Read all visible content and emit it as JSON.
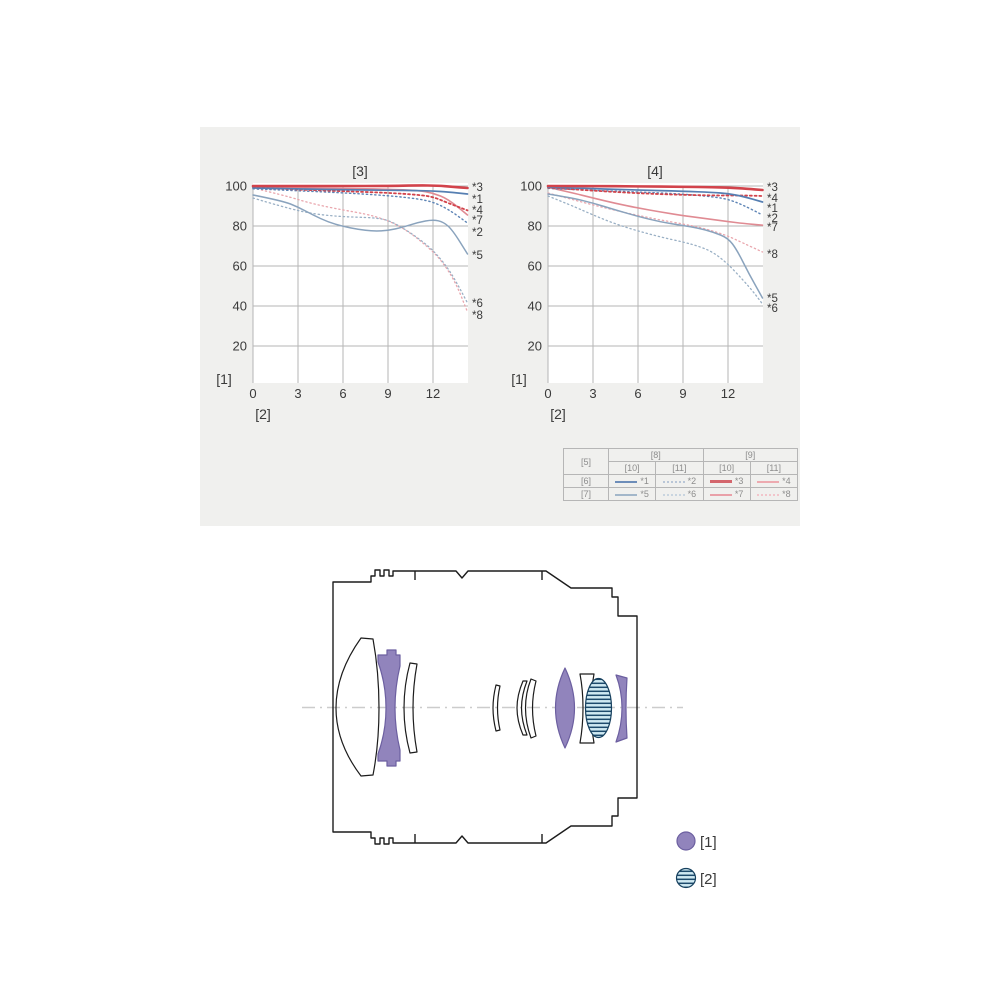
{
  "panel": {
    "background": "#f0f0ee",
    "plot_background": "#ffffff",
    "grid_color": "#b5b5b5"
  },
  "chart_data": [
    {
      "type": "line",
      "title": "[3]",
      "ylabel": "[1]",
      "xlabel": "[2]",
      "x_ticks": [
        "0",
        "3",
        "6",
        "9",
        "12"
      ],
      "y_ticks": [
        "100",
        "80",
        "60",
        "40",
        "20"
      ],
      "xlim": [
        0,
        14.3
      ],
      "ylim": [
        0,
        101.5
      ],
      "grid": true,
      "right_labels": [
        {
          "text": "*3",
          "value": 99.5
        },
        {
          "text": "*1",
          "value": 93.5
        },
        {
          "text": "*4",
          "value": 88
        },
        {
          "text": "*7",
          "value": 83
        },
        {
          "text": "*2",
          "value": 77
        },
        {
          "text": "*5",
          "value": 65.5
        },
        {
          "text": "*6",
          "value": 41.5
        },
        {
          "text": "*8",
          "value": 35.5
        }
      ],
      "series": [
        {
          "name": "*8",
          "color": "#e9a6ad",
          "width": 1.3,
          "dash": "1.3 2.9",
          "points": [
            [
              0,
              99
            ],
            [
              2,
              95.5
            ],
            [
              4,
              91
            ],
            [
              6,
              88
            ],
            [
              7.5,
              86
            ],
            [
              8.5,
              84
            ],
            [
              9.5,
              81
            ],
            [
              10.5,
              76.5
            ],
            [
              11.5,
              70.5
            ],
            [
              12.5,
              63.5
            ],
            [
              13.5,
              52
            ],
            [
              14.3,
              37
            ]
          ]
        },
        {
          "name": "*6",
          "color": "#9ab0c5",
          "width": 1.3,
          "dash": "1.3 2.9",
          "points": [
            [
              0,
              94
            ],
            [
              2,
              89.5
            ],
            [
              4,
              86
            ],
            [
              6,
              84.6
            ],
            [
              8,
              84.2
            ],
            [
              9,
              83
            ],
            [
              10,
              79
            ],
            [
              11,
              74
            ],
            [
              12,
              68
            ],
            [
              13,
              59
            ],
            [
              13.7,
              50
            ],
            [
              14.3,
              41.5
            ]
          ]
        },
        {
          "name": "*5",
          "color": "#8aa3bd",
          "width": 1.5,
          "dash": "",
          "points": [
            [
              0,
              95.5
            ],
            [
              2,
              92.5
            ],
            [
              3,
              89.5
            ],
            [
              4,
              85.5
            ],
            [
              5,
              82
            ],
            [
              6,
              79.8
            ],
            [
              7,
              78.3
            ],
            [
              8,
              77.4
            ],
            [
              9,
              77.7
            ],
            [
              10,
              79.4
            ],
            [
              11,
              81.8
            ],
            [
              12,
              83.2
            ],
            [
              12.7,
              82
            ],
            [
              13.3,
              78
            ],
            [
              14.3,
              66
            ]
          ]
        },
        {
          "name": "*2",
          "color": "#5d84b5",
          "width": 1.4,
          "dash": "1.3 2.9",
          "points": [
            [
              0,
              98.6
            ],
            [
              3,
              97.6
            ],
            [
              6,
              96.6
            ],
            [
              9,
              95.2
            ],
            [
              11,
              93.6
            ],
            [
              12,
              92
            ],
            [
              13,
              88.5
            ],
            [
              14.3,
              81.5
            ]
          ]
        },
        {
          "name": "*7",
          "color": "#e08b93",
          "width": 1.6,
          "dash": "",
          "points": [
            [
              0,
              99.6
            ],
            [
              3,
              99.2
            ],
            [
              6,
              98.8
            ],
            [
              9,
              98.4
            ],
            [
              11,
              97.8
            ],
            [
              12,
              96.5
            ],
            [
              13,
              93.5
            ],
            [
              14.3,
              85.5
            ]
          ]
        },
        {
          "name": "*4",
          "color": "#d2434b",
          "width": 1.8,
          "dash": "2 2.7",
          "points": [
            [
              0,
              99.3
            ],
            [
              3,
              98.2
            ],
            [
              6,
              97.4
            ],
            [
              9,
              96.6
            ],
            [
              11,
              95.6
            ],
            [
              12,
              94.6
            ],
            [
              13,
              91.5
            ],
            [
              14.3,
              87.8
            ]
          ]
        },
        {
          "name": "*1",
          "color": "#567fb2",
          "width": 1.7,
          "dash": "",
          "points": [
            [
              0,
              99
            ],
            [
              3,
              98.5
            ],
            [
              6,
              98.1
            ],
            [
              9,
              97.9
            ],
            [
              11,
              97.7
            ],
            [
              12,
              97.5
            ],
            [
              13,
              97
            ],
            [
              14.3,
              96
            ]
          ]
        },
        {
          "name": "*3",
          "color": "#d2434b",
          "width": 2.6,
          "dash": "",
          "points": [
            [
              0,
              100
            ],
            [
              3,
              100
            ],
            [
              6,
              100
            ],
            [
              9,
              100
            ],
            [
              11,
              100.3
            ],
            [
              12.3,
              100.2
            ],
            [
              13.3,
              99.6
            ],
            [
              14.3,
              99
            ]
          ]
        }
      ]
    },
    {
      "type": "line",
      "title": "[4]",
      "ylabel": "[1]",
      "xlabel": "[2]",
      "x_ticks": [
        "0",
        "3",
        "6",
        "9",
        "12"
      ],
      "y_ticks": [
        "100",
        "80",
        "60",
        "40",
        "20"
      ],
      "xlim": [
        0,
        14.3
      ],
      "ylim": [
        0,
        101.5
      ],
      "grid": true,
      "right_labels": [
        {
          "text": "*3",
          "value": 99.5
        },
        {
          "text": "*4",
          "value": 94
        },
        {
          "text": "*1",
          "value": 89
        },
        {
          "text": "*2",
          "value": 84
        },
        {
          "text": "*7",
          "value": 79.5
        },
        {
          "text": "*8",
          "value": 66
        },
        {
          "text": "*5",
          "value": 44
        },
        {
          "text": "*6",
          "value": 39
        }
      ],
      "series": [
        {
          "name": "*8",
          "color": "#e9a6ad",
          "width": 1.3,
          "dash": "1.3 2.9",
          "points": [
            [
              0,
              96.5
            ],
            [
              1.5,
              93.5
            ],
            [
              3,
              90.5
            ],
            [
              4.5,
              87.8
            ],
            [
              6,
              85.3
            ],
            [
              7.5,
              83
            ],
            [
              9,
              81
            ],
            [
              10,
              79.5
            ],
            [
              11,
              77.5
            ],
            [
              12,
              75
            ],
            [
              13,
              71.5
            ],
            [
              14.3,
              67
            ]
          ]
        },
        {
          "name": "*6",
          "color": "#9ab0c5",
          "width": 1.3,
          "dash": "1.3 2.9",
          "points": [
            [
              0,
              95
            ],
            [
              1.5,
              90.5
            ],
            [
              3,
              85.5
            ],
            [
              4.5,
              81
            ],
            [
              6,
              77.5
            ],
            [
              7.5,
              74.5
            ],
            [
              9,
              72
            ],
            [
              10,
              70
            ],
            [
              11,
              67
            ],
            [
              12,
              61
            ],
            [
              13,
              53
            ],
            [
              13.7,
              47
            ],
            [
              14.3,
              41
            ]
          ]
        },
        {
          "name": "*5",
          "color": "#8aa3bd",
          "width": 1.5,
          "dash": "",
          "points": [
            [
              0,
              96
            ],
            [
              1.5,
              94.2
            ],
            [
              3,
              91.5
            ],
            [
              4.5,
              88
            ],
            [
              6,
              84.8
            ],
            [
              7.5,
              82
            ],
            [
              9,
              80.3
            ],
            [
              10,
              79
            ],
            [
              11,
              77
            ],
            [
              12,
              74
            ],
            [
              12.6,
              68
            ],
            [
              13.4,
              56
            ],
            [
              14.3,
              44
            ]
          ]
        },
        {
          "name": "*7",
          "color": "#e08b93",
          "width": 1.6,
          "dash": "",
          "points": [
            [
              0,
              99.3
            ],
            [
              1.5,
              96.8
            ],
            [
              3,
              94
            ],
            [
              4.5,
              91.3
            ],
            [
              6,
              89
            ],
            [
              7.5,
              87
            ],
            [
              9,
              85.2
            ],
            [
              10,
              84.2
            ],
            [
              11,
              83.2
            ],
            [
              12,
              82.2
            ],
            [
              13,
              81.3
            ],
            [
              14.3,
              80.4
            ]
          ]
        },
        {
          "name": "*2",
          "color": "#5d84b5",
          "width": 1.4,
          "dash": "1.3 2.9",
          "points": [
            [
              0,
              98.8
            ],
            [
              3,
              97.8
            ],
            [
              6,
              97
            ],
            [
              9,
              96
            ],
            [
              11,
              94.6
            ],
            [
              12,
              93.4
            ],
            [
              13,
              90.5
            ],
            [
              14.3,
              85.5
            ]
          ]
        },
        {
          "name": "*4",
          "color": "#d2434b",
          "width": 1.8,
          "dash": "2 2.7",
          "points": [
            [
              0,
              99.2
            ],
            [
              2,
              98.2
            ],
            [
              4,
              97.2
            ],
            [
              6,
              96.4
            ],
            [
              8,
              95.8
            ],
            [
              10,
              95.4
            ],
            [
              12,
              95.2
            ],
            [
              13,
              95.3
            ],
            [
              14.3,
              95
            ]
          ]
        },
        {
          "name": "*1",
          "color": "#567fb2",
          "width": 1.7,
          "dash": "",
          "points": [
            [
              0,
              99.4
            ],
            [
              3,
              98.6
            ],
            [
              6,
              98
            ],
            [
              9,
              97.4
            ],
            [
              11,
              96.8
            ],
            [
              12,
              96.2
            ],
            [
              13,
              94.8
            ],
            [
              14.3,
              92
            ]
          ]
        },
        {
          "name": "*3",
          "color": "#d2434b",
          "width": 2.6,
          "dash": "",
          "points": [
            [
              0,
              100
            ],
            [
              3,
              100
            ],
            [
              6,
              99.8
            ],
            [
              9,
              99.6
            ],
            [
              11,
              99.4
            ],
            [
              12,
              99.2
            ],
            [
              13.3,
              98.6
            ],
            [
              14.3,
              98
            ]
          ]
        }
      ]
    }
  ],
  "legend_table": {
    "corner": "[5]",
    "groups": [
      "[8]",
      "[9]"
    ],
    "subcols": [
      "[10]",
      "[11]",
      "[10]",
      "[11]"
    ],
    "rows": [
      {
        "label": "[6]",
        "entries": [
          {
            "text": "*1",
            "color": "#6d8db9",
            "style": "solid",
            "width": 2
          },
          {
            "text": "*2",
            "color": "#b9c6d7",
            "style": "dotted",
            "width": 2
          },
          {
            "text": "*3",
            "color": "#d4666d",
            "style": "solid",
            "width": 3
          },
          {
            "text": "*4",
            "color": "#edaab0",
            "style": "solid",
            "width": 2
          }
        ]
      },
      {
        "label": "[7]",
        "entries": [
          {
            "text": "*5",
            "color": "#a3b7ca",
            "style": "solid",
            "width": 2
          },
          {
            "text": "*6",
            "color": "#c9d5e0",
            "style": "dotted",
            "width": 2
          },
          {
            "text": "*7",
            "color": "#e9a0a8",
            "style": "solid",
            "width": 2
          },
          {
            "text": "*8",
            "color": "#f2c5cb",
            "style": "dotted",
            "width": 2
          }
        ]
      }
    ]
  },
  "lens_diagram": {
    "colors": {
      "purple": "#9184bc",
      "purple_stroke": "#6c5fa0",
      "stripe_bg": "#cfe9f2",
      "stripe_line": "#1d4a6c",
      "stripe_stroke": "#16405e",
      "outline": "#1c1c1c",
      "centerline": "#cccccc"
    },
    "legend": [
      {
        "label": "[1]",
        "swatch": "aspherical-purple-circle"
      },
      {
        "label": "[2]",
        "swatch": "striped-blue-circle"
      }
    ]
  }
}
